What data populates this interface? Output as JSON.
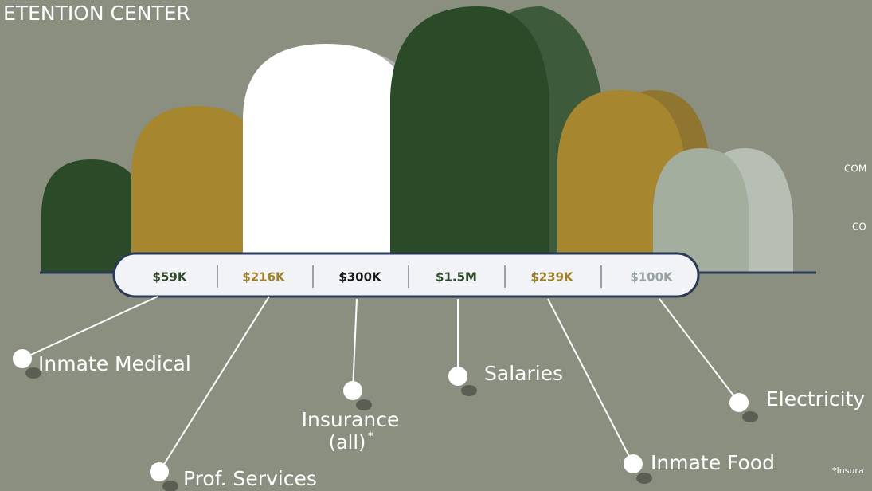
{
  "header": {
    "title": "ETENTION CENTER"
  },
  "items": [
    {
      "value_label": "$59K",
      "color": "#2e4a2a",
      "lines": [
        "Inmate Medical"
      ]
    },
    {
      "value_label": "$216K",
      "color": "#a07f2a",
      "lines": [
        "Prof. Services"
      ]
    },
    {
      "value_label": "$300K",
      "color": "#1a1a1a",
      "lines": [
        "Insurance",
        "(all)"
      ],
      "footnote_mark": "*"
    },
    {
      "value_label": "$1.5M",
      "color": "#2e4a2a",
      "lines": [
        "Salaries"
      ]
    },
    {
      "value_label": "$239K",
      "color": "#a07f2a",
      "lines": [
        "Inmate Food"
      ]
    },
    {
      "value_label": "$100K",
      "color": "#9aa4a0",
      "lines": [
        "Electricity"
      ]
    }
  ],
  "side_texts": [
    "COM",
    "CO"
  ],
  "footnote": "*Insura"
}
